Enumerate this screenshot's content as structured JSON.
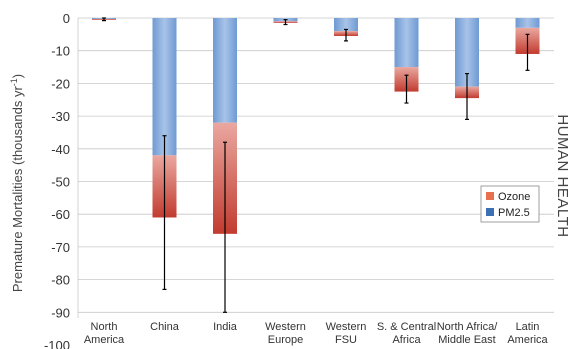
{
  "chart_data": {
    "type": "bar",
    "stacked": true,
    "categories": [
      [
        "North",
        "America"
      ],
      [
        "China"
      ],
      [
        "India"
      ],
      [
        "Western",
        "Europe"
      ],
      [
        "Western",
        "FSU"
      ],
      [
        "S. & Central",
        "Africa"
      ],
      [
        "North Africa/",
        "Middle East"
      ],
      [
        "Latin",
        "America"
      ]
    ],
    "series": [
      {
        "name": "PM2.5",
        "color": "#4f7fc0",
        "values": [
          -0.3,
          -42,
          -32,
          -1,
          -4,
          -15,
          -21,
          -3
        ]
      },
      {
        "name": "Ozone",
        "color": "#cf5547",
        "values": [
          -0.3,
          -19,
          -34,
          -0.5,
          -1.5,
          -7.5,
          -3.5,
          -8
        ]
      }
    ],
    "error_bars": [
      {
        "low": -0.8,
        "high": 0
      },
      {
        "low": -83,
        "high": -36
      },
      {
        "low": -90,
        "high": -38
      },
      {
        "low": -2,
        "high": -0.5
      },
      {
        "low": -7,
        "high": -3.5
      },
      {
        "low": -26,
        "high": -17.5
      },
      {
        "low": -31,
        "high": -17
      },
      {
        "low": -16,
        "high": -5
      }
    ],
    "ylabel": "Premature Mortalities (thousands yr",
    "ylabel_sup": "-1",
    "ylabel_close": ")",
    "ylim": [
      -100,
      0
    ],
    "yticks": [
      0,
      -10,
      -20,
      -30,
      -40,
      -50,
      -60,
      -70,
      -80,
      -90,
      -100
    ],
    "grid": true,
    "legend_position": "right",
    "side_label": "HUMAN HEALTH"
  }
}
